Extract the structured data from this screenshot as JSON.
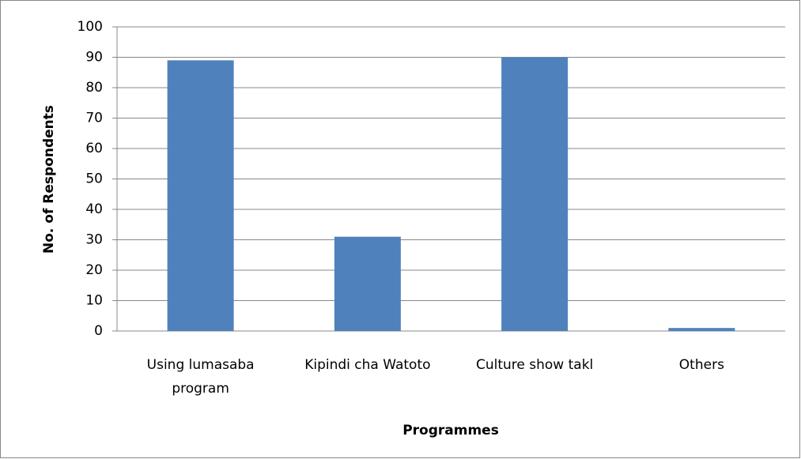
{
  "chart_data": {
    "type": "bar",
    "categories": [
      "Using lumasaba program",
      "Kipindi cha Watoto",
      "Culture show takl",
      "Others"
    ],
    "values": [
      89,
      31,
      90,
      1
    ],
    "color": "#4f81bd",
    "ylim": [
      0,
      100
    ],
    "yticks": [
      0,
      10,
      20,
      30,
      40,
      50,
      60,
      70,
      80,
      90,
      100
    ],
    "grid": true,
    "y_label": "No. of Respondents",
    "x_label": "Programmes"
  }
}
